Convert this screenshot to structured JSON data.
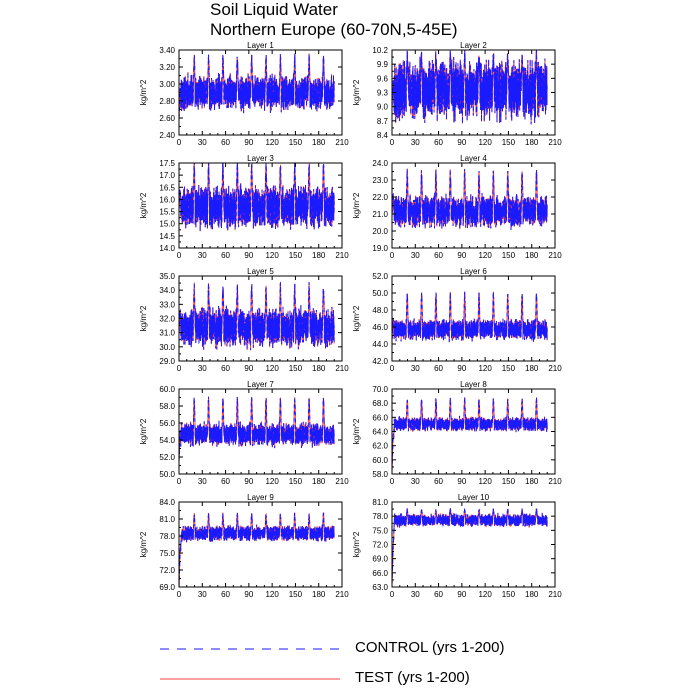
{
  "figure": {
    "title_line1": "Soil Liquid Water",
    "title_line2": "Northern Europe (60-70N,5-45E)"
  },
  "legend": {
    "control_label": "CONTROL (yrs 1-200)",
    "test_label": "TEST (yrs 1-200)",
    "control_color": "#1a1aff",
    "test_color": "#ff4040"
  },
  "chart_data": [
    {
      "type": "line",
      "title": "Layer 1",
      "ylabel": "kg/m^2",
      "xlim": [
        0,
        210
      ],
      "xticks": [
        0,
        30,
        60,
        90,
        120,
        150,
        180,
        210
      ],
      "xtick_labels": [
        "0",
        "30",
        "60",
        "90",
        "120",
        "150",
        "180",
        "210"
      ],
      "ylim": [
        2.4,
        3.4
      ],
      "yticks": [
        2.4,
        2.6,
        2.8,
        3.0,
        3.2,
        3.4
      ],
      "ytick_labels": [
        "2.40",
        "2.60",
        "2.80",
        "3.00",
        "3.20",
        "3.40"
      ],
      "series": [
        {
          "name": "CONTROL (yrs 1-200)",
          "style": "dashed",
          "start": 2.6,
          "mean": 2.95,
          "amplitude_low": 0.3,
          "amplitude_high": 0.35,
          "period_years": 18.5
        },
        {
          "name": "TEST (yrs 1-200)",
          "style": "solid",
          "start": 2.6,
          "mean": 2.95,
          "amplitude_low": 0.3,
          "amplitude_high": 0.35,
          "period_years": 18.5
        }
      ]
    },
    {
      "type": "line",
      "title": "Layer 2",
      "ylabel": "kg/m^2",
      "xlim": [
        0,
        210
      ],
      "xticks": [
        0,
        30,
        60,
        90,
        120,
        150,
        180,
        210
      ],
      "xtick_labels": [
        "0",
        "30",
        "60",
        "90",
        "120",
        "150",
        "180",
        "210"
      ],
      "ylim": [
        8.4,
        10.2
      ],
      "yticks": [
        8.4,
        8.7,
        9.0,
        9.3,
        9.6,
        9.9,
        10.2
      ],
      "ytick_labels": [
        "8.4",
        "8.7",
        "9.0",
        "9.3",
        "9.6",
        "9.9",
        "10.2"
      ],
      "series": [
        {
          "name": "CONTROL (yrs 1-200)",
          "style": "dashed",
          "start": 9.0,
          "mean": 9.5,
          "amplitude_low": 0.9,
          "amplitude_high": 0.55,
          "period_years": 18.5
        },
        {
          "name": "TEST (yrs 1-200)",
          "style": "solid",
          "start": 9.0,
          "mean": 9.5,
          "amplitude_low": 0.9,
          "amplitude_high": 0.55,
          "period_years": 18.5
        }
      ]
    },
    {
      "type": "line",
      "title": "Layer 3",
      "ylabel": "kg/m^2",
      "xlim": [
        0,
        210
      ],
      "xticks": [
        0,
        30,
        60,
        90,
        120,
        150,
        180,
        210
      ],
      "xtick_labels": [
        "0",
        "30",
        "60",
        "90",
        "120",
        "150",
        "180",
        "210"
      ],
      "ylim": [
        14.0,
        17.5
      ],
      "yticks": [
        14.0,
        14.5,
        15.0,
        15.5,
        16.0,
        16.5,
        17.0,
        17.5
      ],
      "ytick_labels": [
        "14.0",
        "14.5",
        "15.0",
        "15.5",
        "16.0",
        "16.5",
        "17.0",
        "17.5"
      ],
      "series": [
        {
          "name": "CONTROL (yrs 1-200)",
          "style": "dashed",
          "start": 15.6,
          "mean": 15.9,
          "amplitude_low": 1.3,
          "amplitude_high": 1.45,
          "period_years": 18.5
        },
        {
          "name": "TEST (yrs 1-200)",
          "style": "solid",
          "start": 15.6,
          "mean": 15.9,
          "amplitude_low": 1.3,
          "amplitude_high": 1.45,
          "period_years": 18.5
        }
      ]
    },
    {
      "type": "line",
      "title": "Layer 4",
      "ylabel": "kg/m^2",
      "xlim": [
        0,
        210
      ],
      "xticks": [
        0,
        30,
        60,
        90,
        120,
        150,
        180,
        210
      ],
      "xtick_labels": [
        "0",
        "30",
        "60",
        "90",
        "120",
        "150",
        "180",
        "210"
      ],
      "ylim": [
        19.0,
        24.0
      ],
      "yticks": [
        19.0,
        20.0,
        21.0,
        22.0,
        23.0,
        24.0
      ],
      "ytick_labels": [
        "19.0",
        "20.0",
        "21.0",
        "22.0",
        "23.0",
        "24.0"
      ],
      "series": [
        {
          "name": "CONTROL (yrs 1-200)",
          "style": "dashed",
          "start": 21.0,
          "mean": 21.4,
          "amplitude_low": 1.4,
          "amplitude_high": 2.0,
          "period_years": 18.5
        },
        {
          "name": "TEST (yrs 1-200)",
          "style": "solid",
          "start": 21.0,
          "mean": 21.4,
          "amplitude_low": 1.4,
          "amplitude_high": 2.0,
          "period_years": 18.5
        }
      ]
    },
    {
      "type": "line",
      "title": "Layer 5",
      "ylabel": "kg/m^2",
      "xlim": [
        0,
        210
      ],
      "xticks": [
        0,
        30,
        60,
        90,
        120,
        150,
        180,
        210
      ],
      "xtick_labels": [
        "0",
        "30",
        "60",
        "90",
        "120",
        "150",
        "180",
        "210"
      ],
      "ylim": [
        29.0,
        35.0
      ],
      "yticks": [
        29.0,
        30.0,
        31.0,
        32.0,
        33.0,
        34.0,
        35.0
      ],
      "ytick_labels": [
        "29.0",
        "30.0",
        "31.0",
        "32.0",
        "33.0",
        "34.0",
        "35.0"
      ],
      "series": [
        {
          "name": "CONTROL (yrs 1-200)",
          "style": "dashed",
          "start": 31.0,
          "mean": 31.7,
          "amplitude_low": 2.0,
          "amplitude_high": 2.5,
          "period_years": 18.5
        },
        {
          "name": "TEST (yrs 1-200)",
          "style": "solid",
          "start": 31.0,
          "mean": 31.7,
          "amplitude_low": 2.0,
          "amplitude_high": 2.5,
          "period_years": 18.5
        }
      ]
    },
    {
      "type": "line",
      "title": "Layer 6",
      "ylabel": "kg/m^2",
      "xlim": [
        0,
        210
      ],
      "xticks": [
        0,
        30,
        60,
        90,
        120,
        150,
        180,
        210
      ],
      "xtick_labels": [
        "0",
        "30",
        "60",
        "90",
        "120",
        "150",
        "180",
        "210"
      ],
      "ylim": [
        42.0,
        52.0
      ],
      "yticks": [
        42.0,
        44.0,
        46.0,
        48.0,
        50.0,
        52.0
      ],
      "ytick_labels": [
        "42.0",
        "44.0",
        "46.0",
        "48.0",
        "50.0",
        "52.0"
      ],
      "series": [
        {
          "name": "CONTROL (yrs 1-200)",
          "style": "dashed",
          "start": 44.5,
          "mean": 46.0,
          "amplitude_low": 1.8,
          "amplitude_high": 3.8,
          "period_years": 18.5
        },
        {
          "name": "TEST (yrs 1-200)",
          "style": "solid",
          "start": 44.5,
          "mean": 46.0,
          "amplitude_low": 1.8,
          "amplitude_high": 3.8,
          "period_years": 18.5
        }
      ]
    },
    {
      "type": "line",
      "title": "Layer 7",
      "ylabel": "kg/m^2",
      "xlim": [
        0,
        210
      ],
      "xticks": [
        0,
        30,
        60,
        90,
        120,
        150,
        180,
        210
      ],
      "xtick_labels": [
        "0",
        "30",
        "60",
        "90",
        "120",
        "150",
        "180",
        "210"
      ],
      "ylim": [
        50.0,
        60.0
      ],
      "yticks": [
        50.0,
        52.0,
        54.0,
        56.0,
        58.0,
        60.0
      ],
      "ytick_labels": [
        "50.0",
        "52.0",
        "54.0",
        "56.0",
        "58.0",
        "60.0"
      ],
      "series": [
        {
          "name": "CONTROL (yrs 1-200)",
          "style": "dashed",
          "start": 51.5,
          "mean": 55.0,
          "amplitude_low": 2.0,
          "amplitude_high": 3.8,
          "period_years": 18.5
        },
        {
          "name": "TEST (yrs 1-200)",
          "style": "solid",
          "start": 51.5,
          "mean": 55.0,
          "amplitude_low": 2.0,
          "amplitude_high": 3.8,
          "period_years": 18.5
        }
      ]
    },
    {
      "type": "line",
      "title": "Layer 8",
      "ylabel": "kg/m^2",
      "xlim": [
        0,
        210
      ],
      "xticks": [
        0,
        30,
        60,
        90,
        120,
        150,
        180,
        210
      ],
      "xtick_labels": [
        "0",
        "30",
        "60",
        "90",
        "120",
        "150",
        "180",
        "210"
      ],
      "ylim": [
        58.0,
        70.0
      ],
      "yticks": [
        58.0,
        60.0,
        62.0,
        64.0,
        66.0,
        68.0,
        70.0
      ],
      "ytick_labels": [
        "58.0",
        "60.0",
        "62.0",
        "64.0",
        "66.0",
        "68.0",
        "70.0"
      ],
      "series": [
        {
          "name": "CONTROL (yrs 1-200)",
          "style": "dashed",
          "start": 58.5,
          "mean": 65.3,
          "amplitude_low": 1.5,
          "amplitude_high": 3.2,
          "period_years": 18.5
        },
        {
          "name": "TEST (yrs 1-200)",
          "style": "solid",
          "start": 58.5,
          "mean": 65.3,
          "amplitude_low": 1.5,
          "amplitude_high": 3.2,
          "period_years": 18.5
        }
      ]
    },
    {
      "type": "line",
      "title": "Layer 9",
      "ylabel": "kg/m^2",
      "xlim": [
        0,
        210
      ],
      "xticks": [
        0,
        30,
        60,
        90,
        120,
        150,
        180,
        210
      ],
      "xtick_labels": [
        "0",
        "30",
        "60",
        "90",
        "120",
        "150",
        "180",
        "210"
      ],
      "ylim": [
        69.0,
        84.0
      ],
      "yticks": [
        69.0,
        72.0,
        75.0,
        78.0,
        81.0,
        84.0
      ],
      "ytick_labels": [
        "69.0",
        "72.0",
        "75.0",
        "78.0",
        "81.0",
        "84.0"
      ],
      "series": [
        {
          "name": "CONTROL (yrs 1-200)",
          "style": "dashed",
          "start": 69.0,
          "mean": 78.8,
          "amplitude_low": 2.0,
          "amplitude_high": 3.0,
          "period_years": 18.5
        },
        {
          "name": "TEST (yrs 1-200)",
          "style": "solid",
          "start": 69.0,
          "mean": 78.8,
          "amplitude_low": 2.0,
          "amplitude_high": 3.0,
          "period_years": 18.5
        }
      ]
    },
    {
      "type": "line",
      "title": "Layer 10",
      "ylabel": "kg/m^2",
      "xlim": [
        0,
        210
      ],
      "xticks": [
        0,
        30,
        60,
        90,
        120,
        150,
        180,
        210
      ],
      "xtick_labels": [
        "0",
        "30",
        "60",
        "90",
        "120",
        "150",
        "180",
        "210"
      ],
      "ylim": [
        63.0,
        81.0
      ],
      "yticks": [
        63.0,
        66.0,
        69.0,
        72.0,
        75.0,
        78.0,
        81.0
      ],
      "ytick_labels": [
        "63.0",
        "66.0",
        "69.0",
        "72.0",
        "75.0",
        "78.0",
        "81.0"
      ],
      "series": [
        {
          "name": "CONTROL (yrs 1-200)",
          "style": "dashed",
          "start": 63.5,
          "mean": 77.5,
          "amplitude_low": 2.0,
          "amplitude_high": 1.8,
          "period_years": 18.5
        },
        {
          "name": "TEST (yrs 1-200)",
          "style": "solid",
          "start": 63.5,
          "mean": 77.5,
          "amplitude_low": 2.0,
          "amplitude_high": 1.8,
          "period_years": 18.5
        }
      ]
    }
  ]
}
